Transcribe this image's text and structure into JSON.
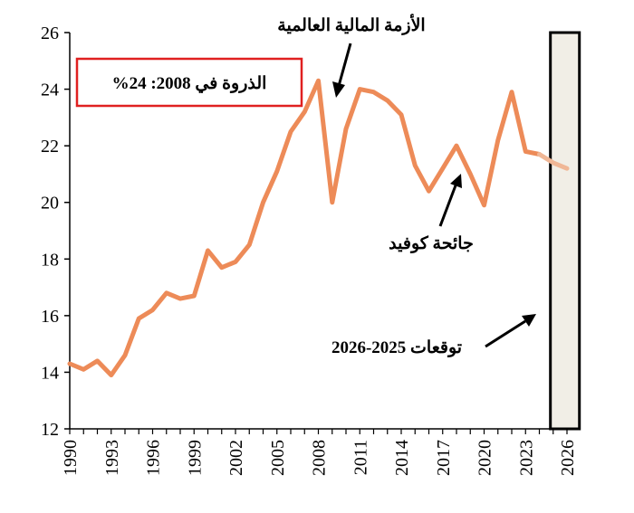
{
  "chart_data": {
    "type": "line",
    "title": "",
    "xlabel": "",
    "ylabel": "",
    "xlim": [
      1990,
      2026
    ],
    "ylim": [
      12,
      26
    ],
    "yticks": [
      12,
      14,
      16,
      18,
      20,
      22,
      24,
      26
    ],
    "xticks": [
      1990,
      1993,
      1996,
      1999,
      2002,
      2005,
      2008,
      2011,
      2014,
      2017,
      2020,
      2023,
      2026
    ],
    "grid": false,
    "line_color": "#ED8B58",
    "forecast_color": "#F0B796",
    "forecast_shade_color": "#F1EEE6",
    "series": [
      {
        "x": [
          1990,
          1991,
          1992,
          1993,
          1994,
          1995,
          1996,
          1997,
          1998,
          1999,
          2000,
          2001,
          2002,
          2003,
          2004,
          2005,
          2006,
          2007,
          2008,
          2009,
          2010,
          2011,
          2012,
          2013,
          2014,
          2015,
          2016,
          2017,
          2018,
          2019,
          2020,
          2021,
          2022,
          2023,
          2024
        ],
        "values": [
          14.3,
          14.1,
          14.4,
          13.9,
          14.6,
          15.9,
          16.2,
          16.8,
          16.6,
          16.7,
          18.3,
          17.7,
          17.9,
          18.5,
          20.0,
          21.1,
          22.5,
          23.2,
          24.3,
          20.0,
          22.6,
          24.0,
          23.9,
          23.6,
          23.1,
          21.3,
          20.4,
          21.2,
          22.0,
          21.0,
          19.9,
          22.2,
          23.9,
          21.8,
          21.7
        ]
      },
      {
        "x": [
          2024,
          2025,
          2026
        ],
        "values": [
          21.7,
          21.4,
          21.2
        ],
        "forecast": true
      }
    ],
    "forecast_range": [
      2024.8,
      2026.9
    ],
    "annotations": {
      "peak_box": "الذروة في 2008: 24%",
      "crisis": "الأزمة المالية العالمية",
      "covid": "جائحة كوفيد",
      "forecast": "توقعات 2025-2026"
    },
    "annotation_box_color": "#E02020"
  }
}
